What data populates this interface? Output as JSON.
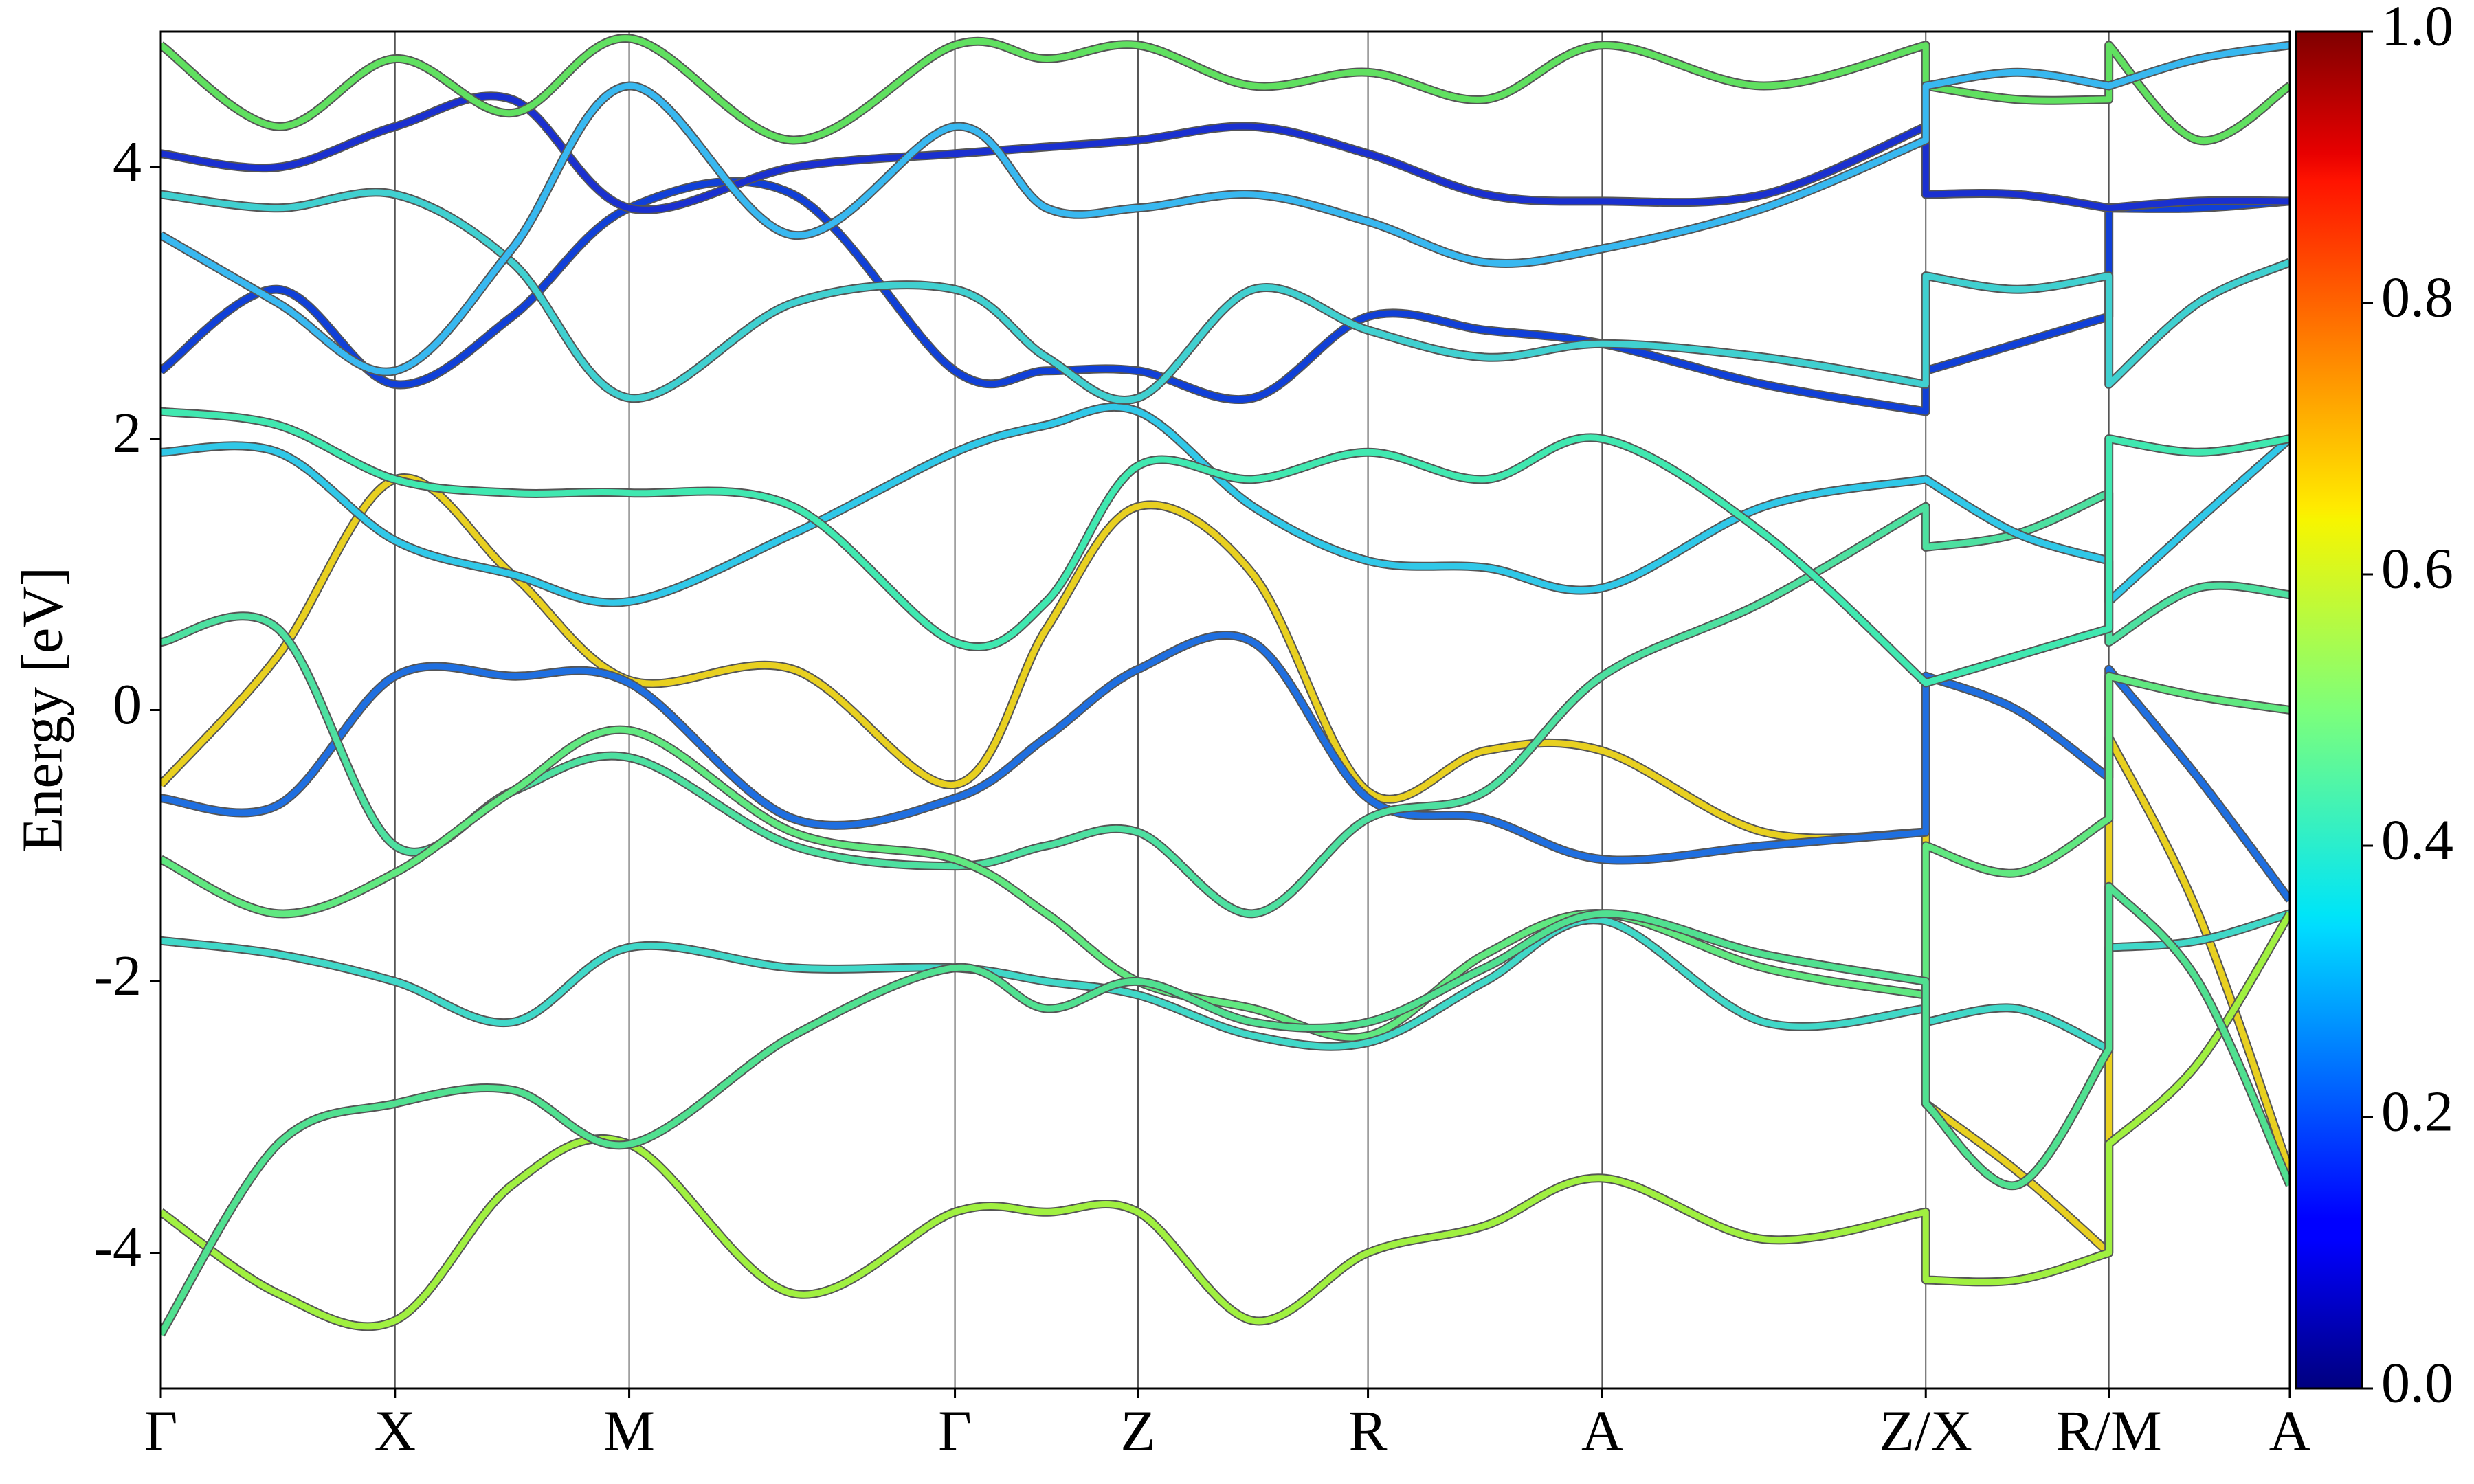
{
  "chart_data": {
    "type": "band-structure",
    "y_label": "Energy [eV]",
    "xlim": [
      0,
      1
    ],
    "ylim": [
      -5,
      5
    ],
    "yticks": [
      -4,
      -2,
      0,
      2,
      4
    ],
    "xticks": [
      {
        "value": 0,
        "label": "Γ"
      },
      {
        "value": 0.11,
        "label": "X"
      },
      {
        "value": 0.22,
        "label": "M"
      },
      {
        "value": 0.373,
        "label": "Γ"
      },
      {
        "value": 0.459,
        "label": "Z"
      },
      {
        "value": 0.567,
        "label": "R"
      },
      {
        "value": 0.677,
        "label": "A"
      },
      {
        "value": 0.829,
        "label": "Z/X"
      },
      {
        "value": 0.915,
        "label": "R/M"
      },
      {
        "value": 1,
        "label": "A"
      }
    ],
    "grid": true,
    "x": [
      0,
      0.055,
      0.11,
      0.165,
      0.22,
      0.297,
      0.373,
      0.416,
      0.459,
      0.513,
      0.567,
      0.622,
      0.677,
      0.753,
      0.829,
      0.829,
      0.872,
      0.915,
      0.915,
      0.957,
      1
    ],
    "series": [
      {
        "color": "#e8d020",
        "values": [
          -0.55,
          0.4,
          1.7,
          1.0,
          0.22,
          0.3,
          -0.55,
          0.6,
          1.5,
          1.0,
          -0.6,
          -0.3,
          -0.3,
          -0.9,
          -0.9,
          -2.9,
          -3.4,
          -4.0,
          -0.2,
          -1.5,
          -3.4
        ]
      },
      {
        "color": "#1f6fe0",
        "values": [
          -0.65,
          -0.7,
          0.25,
          0.25,
          0.2,
          -0.8,
          -0.65,
          -0.2,
          0.3,
          0.5,
          -0.65,
          -0.8,
          -1.1,
          -1.0,
          -0.9,
          0.25,
          0.0,
          -0.5,
          0.3,
          -0.5,
          -1.4
        ]
      },
      {
        "color": "#4de0a0",
        "values": [
          0.5,
          0.6,
          -1.0,
          -0.6,
          -0.35,
          -1.0,
          -1.15,
          -1.0,
          -0.9,
          -1.5,
          -0.8,
          -0.6,
          0.25,
          0.8,
          1.5,
          1.2,
          1.3,
          1.6,
          0.5,
          0.9,
          0.85
        ]
      },
      {
        "color": "#60e880",
        "values": [
          -1.1,
          -1.5,
          -1.2,
          -0.6,
          -0.15,
          -0.9,
          -1.1,
          -1.5,
          -2.0,
          -2.2,
          -2.4,
          -1.8,
          -1.5,
          -1.9,
          -2.1,
          -1.0,
          -1.2,
          -0.8,
          0.25,
          0.1,
          0.0
        ]
      },
      {
        "color": "#40d8c8",
        "values": [
          -1.7,
          -1.8,
          -2.0,
          -2.3,
          -1.75,
          -1.9,
          -1.9,
          -2.0,
          -2.1,
          -2.4,
          -2.45,
          -2.0,
          -1.55,
          -2.3,
          -2.2,
          -2.3,
          -2.2,
          -2.5,
          -1.75,
          -1.7,
          -1.5
        ]
      },
      {
        "color": "#a0f040",
        "values": [
          -3.7,
          -4.3,
          -4.5,
          -3.5,
          -3.2,
          -4.3,
          -3.7,
          -3.7,
          -3.7,
          -4.5,
          -4.0,
          -3.8,
          -3.45,
          -3.9,
          -3.7,
          -4.2,
          -4.2,
          -4.0,
          -3.2,
          -2.6,
          -1.5
        ]
      },
      {
        "color": "#50e090",
        "values": [
          -4.6,
          -3.2,
          -2.9,
          -2.8,
          -3.2,
          -2.4,
          -1.9,
          -2.2,
          -2.0,
          -2.3,
          -2.3,
          -1.9,
          -1.5,
          -1.8,
          -2.0,
          -2.9,
          -3.5,
          -2.5,
          -1.3,
          -2.0,
          -3.5
        ]
      },
      {
        "color": "#30c8e8",
        "values": [
          1.9,
          1.9,
          1.25,
          1.0,
          0.8,
          1.3,
          1.9,
          2.1,
          2.2,
          1.5,
          1.1,
          1.05,
          0.9,
          1.5,
          1.7,
          1.7,
          1.3,
          1.1,
          0.8,
          1.4,
          2.0
        ]
      },
      {
        "color": "#40e8b0",
        "values": [
          2.2,
          2.1,
          1.7,
          1.6,
          1.6,
          1.5,
          0.5,
          0.8,
          1.8,
          1.7,
          1.9,
          1.7,
          2.0,
          1.3,
          0.2,
          0.2,
          0.4,
          0.6,
          2.0,
          1.9,
          2.0
        ]
      },
      {
        "color": "#1040d8",
        "values": [
          2.5,
          3.1,
          2.4,
          2.9,
          3.7,
          3.8,
          2.5,
          2.5,
          2.5,
          2.3,
          2.9,
          2.8,
          2.7,
          2.4,
          2.2,
          2.5,
          2.7,
          2.9,
          3.7,
          3.7,
          3.75
        ]
      },
      {
        "color": "#40d0d0",
        "values": [
          3.8,
          3.7,
          3.8,
          3.3,
          2.3,
          3.0,
          3.1,
          2.6,
          2.3,
          3.1,
          2.8,
          2.6,
          2.7,
          2.6,
          2.4,
          3.2,
          3.1,
          3.2,
          2.4,
          3.0,
          3.3
        ]
      },
      {
        "color": "#1a30d0",
        "values": [
          4.1,
          4.0,
          4.3,
          4.5,
          3.7,
          4.0,
          4.1,
          4.15,
          4.2,
          4.3,
          4.1,
          3.8,
          3.75,
          3.8,
          4.3,
          3.8,
          3.8,
          3.7,
          3.7,
          3.75,
          3.75
        ]
      },
      {
        "color": "#60e060",
        "values": [
          4.9,
          4.3,
          4.8,
          4.4,
          4.95,
          4.2,
          4.9,
          4.8,
          4.9,
          4.6,
          4.7,
          4.5,
          4.9,
          4.6,
          4.9,
          4.6,
          4.5,
          4.5,
          4.9,
          4.2,
          4.6
        ]
      },
      {
        "color": "#38b8f0",
        "values": [
          3.5,
          3.0,
          2.5,
          3.4,
          4.6,
          3.5,
          4.3,
          3.7,
          3.7,
          3.8,
          3.6,
          3.3,
          3.4,
          3.7,
          4.2,
          4.6,
          4.7,
          4.6,
          4.6,
          4.8,
          4.9
        ]
      }
    ],
    "colorbar": {
      "colormap": "jet",
      "clim": [
        0,
        1
      ],
      "ticks": [
        {
          "value": 0,
          "label": "0.0"
        },
        0.2,
        0.4,
        0.6,
        0.8,
        {
          "value": 1,
          "label": "1.0"
        }
      ]
    }
  }
}
